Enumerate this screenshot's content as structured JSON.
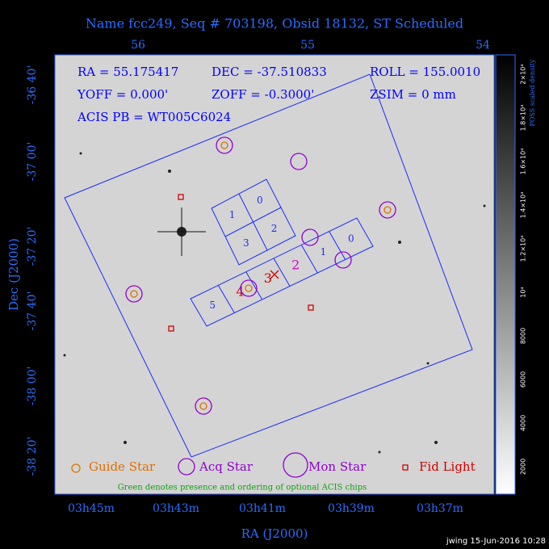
{
  "header": {
    "title": "Name fcc249, Seq # 703198, Obsid 18132, ST Scheduled"
  },
  "axes": {
    "top_ticks": [
      "56",
      "55",
      "54"
    ],
    "left_ticks": [
      "-36 40'",
      "-37 00'",
      "-37 20'",
      "-37 40'",
      "-38 00'",
      "-38 20'"
    ],
    "bottom_ticks": [
      "03h45m",
      "03h43m",
      "03h41m",
      "03h39m",
      "03h37m"
    ],
    "x_label": "RA (J2000)",
    "y_label": "Dec (J2000)"
  },
  "info": [
    "RA = 55.175417",
    "DEC = -37.510833",
    "ROLL = 155.0010",
    "YOFF =  0.000'",
    "ZOFF = -0.3000'",
    "ZSIM = 0 mm",
    "ACIS PB = WT005C6024"
  ],
  "chips": {
    "i_array": [
      "1",
      "0",
      "3",
      "2"
    ],
    "s_array": [
      "5",
      "4",
      "3",
      "2",
      "1",
      "0"
    ]
  },
  "legend": [
    "Guide Star",
    "Acq Star",
    "Mon Star",
    "Fid Light"
  ],
  "note": "Green denotes presence and ordering of optional ACIS chips",
  "colorbar": {
    "label": "POSS scaled density",
    "ticks": [
      "2000",
      "4000",
      "6000",
      "8000",
      "10⁴",
      "1.2×10⁴",
      "1.4×10⁴",
      "1.6×10⁴",
      "1.8×10⁴",
      "2×10⁴"
    ]
  },
  "footer": "jwing 15-Jun-2016 10:28"
}
